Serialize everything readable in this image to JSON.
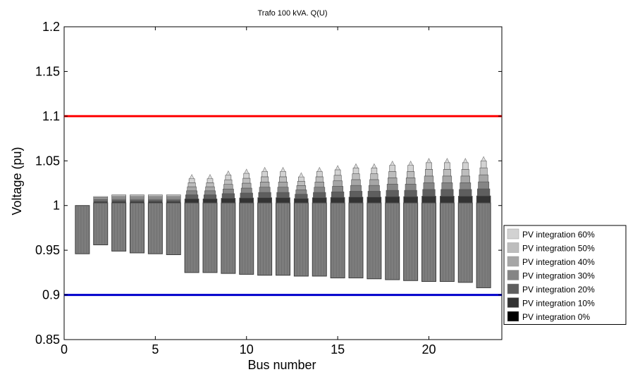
{
  "chart_data": {
    "type": "bar",
    "title": "Trafo 100 kVA. Q(U)",
    "xlabel": "Bus number",
    "ylabel": "Voltage (pu)",
    "xlim": [
      0,
      24
    ],
    "ylim": [
      0.85,
      1.2
    ],
    "xticks": [
      0,
      5,
      10,
      15,
      20
    ],
    "yticks": [
      0.85,
      0.9,
      0.95,
      1.0,
      1.05,
      1.1,
      1.15,
      1.2
    ],
    "ytick_labels": [
      "0.85",
      "0.9",
      "0.95",
      "1",
      "1.05",
      "1.1",
      "1.15",
      "1.2"
    ],
    "limits": [
      {
        "value": 1.1,
        "color": "#ff0000"
      },
      {
        "value": 0.9,
        "color": "#0000cc"
      }
    ],
    "buses": [
      1,
      2,
      3,
      4,
      5,
      6,
      7,
      8,
      9,
      10,
      11,
      12,
      13,
      14,
      15,
      16,
      17,
      18,
      19,
      20,
      21,
      22,
      23
    ],
    "min_voltage": [
      0.946,
      0.956,
      0.949,
      0.947,
      0.946,
      0.945,
      0.925,
      0.925,
      0.924,
      0.923,
      0.922,
      0.922,
      0.921,
      0.921,
      0.919,
      0.919,
      0.918,
      0.917,
      0.916,
      0.915,
      0.915,
      0.914,
      0.908
    ],
    "max_voltage": [
      1.0,
      1.01,
      1.012,
      1.012,
      1.012,
      1.012,
      1.03,
      1.03,
      1.034,
      1.036,
      1.038,
      1.038,
      1.032,
      1.038,
      1.04,
      1.042,
      1.042,
      1.045,
      1.045,
      1.048,
      1.048,
      1.048,
      1.05
    ],
    "legend": {
      "placement": "outside-right-bottom",
      "entries": [
        {
          "label": "PV integration 60%",
          "color": "#d2d2d2"
        },
        {
          "label": "PV integration 50%",
          "color": "#bdbdbd"
        },
        {
          "label": "PV integration 40%",
          "color": "#a6a6a6"
        },
        {
          "label": "PV integration 30%",
          "color": "#858585"
        },
        {
          "label": "PV integration 20%",
          "color": "#5e5e5e"
        },
        {
          "label": "PV integration 10%",
          "color": "#333333"
        },
        {
          "label": "PV integration 0%",
          "color": "#000000"
        }
      ]
    }
  }
}
